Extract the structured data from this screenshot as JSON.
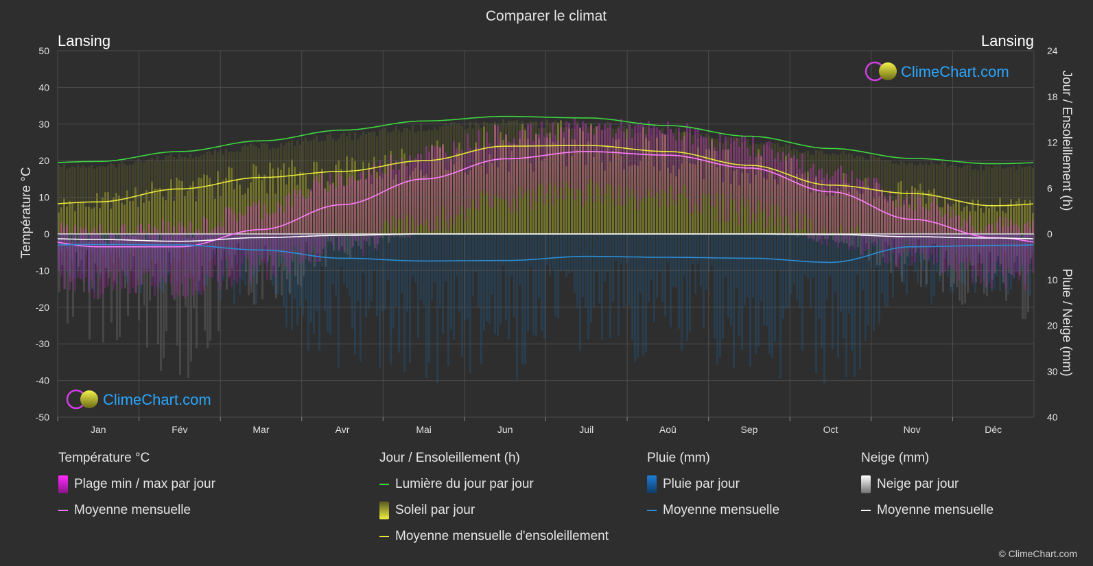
{
  "title": "Comparer le climat",
  "location_left": "Lansing",
  "location_right": "Lansing",
  "left_axis_label": "Température °C",
  "right_axis_label_top": "Jour / Ensoleillement (h)",
  "right_axis_label_bottom": "Pluie / Neige (mm)",
  "logo_text": "ClimeChart.com",
  "copyright": "© ClimeChart.com",
  "colors": {
    "background": "#2e2e2e",
    "daylight": "#3fd83f",
    "sunshine": "#e8e83a",
    "temp_mean": "#ff7dff",
    "temp_range": "#d020d0",
    "rain": "#2a8fd8",
    "snow": "#ffffff",
    "logo": "#2aa6ff"
  },
  "legend": {
    "temperature": {
      "title": "Température °C",
      "range": "Plage min / max par jour",
      "mean": "Moyenne mensuelle"
    },
    "sun": {
      "title": "Jour / Ensoleillement (h)",
      "daylight": "Lumière du jour par jour",
      "sunshine": "Soleil par jour",
      "sunshine_mean": "Moyenne mensuelle d'ensoleillement"
    },
    "rain": {
      "title": "Pluie (mm)",
      "daily": "Pluie par jour",
      "mean": "Moyenne mensuelle"
    },
    "snow": {
      "title": "Neige (mm)",
      "daily": "Neige par jour",
      "mean": "Moyenne mensuelle"
    }
  },
  "chart_data": {
    "type": "line",
    "months": [
      "Jan",
      "Fév",
      "Mar",
      "Avr",
      "Mai",
      "Jun",
      "Juil",
      "Aoû",
      "Sep",
      "Oct",
      "Nov",
      "Déc"
    ],
    "temp_axis": {
      "ticks": [
        50,
        40,
        30,
        20,
        10,
        0,
        -10,
        -20,
        -30,
        -40,
        -50
      ],
      "range": [
        -50,
        50
      ]
    },
    "hours_axis": {
      "ticks": [
        24,
        18,
        12,
        6,
        0
      ],
      "range": [
        0,
        24
      ]
    },
    "precip_axis": {
      "ticks": [
        0,
        10,
        20,
        30,
        40
      ],
      "range": [
        0,
        40
      ],
      "inverted": true
    },
    "series": [
      {
        "name": "Lumière du jour par jour",
        "unit": "h",
        "values": [
          9.5,
          10.8,
          12.2,
          13.6,
          14.8,
          15.4,
          15.2,
          14.2,
          12.8,
          11.2,
          9.9,
          9.2
        ]
      },
      {
        "name": "Moyenne mensuelle d'ensoleillement",
        "unit": "h",
        "values": [
          4.2,
          5.9,
          7.4,
          8.2,
          9.6,
          11.5,
          11.6,
          10.8,
          9.0,
          6.4,
          5.3,
          3.7
        ]
      },
      {
        "name": "Température moyenne mensuelle",
        "unit": "°C",
        "values": [
          -3.5,
          -3.5,
          1.2,
          8.0,
          15.0,
          20.5,
          22.5,
          21.5,
          18.0,
          11.5,
          4.0,
          -1.0
        ]
      },
      {
        "name": "Pluie moyenne mensuelle",
        "unit": "mm",
        "values": [
          2.3,
          2.4,
          3.5,
          5.3,
          5.9,
          5.8,
          4.9,
          5.1,
          5.3,
          6.2,
          2.8,
          2.5
        ]
      },
      {
        "name": "Neige moyenne mensuelle",
        "unit": "mm",
        "values": [
          1.2,
          1.6,
          0.8,
          0.3,
          0.0,
          0.0,
          0.0,
          0.0,
          0.0,
          0.1,
          0.6,
          0.9
        ]
      },
      {
        "name": "Plage min / max par jour — max",
        "unit": "°C",
        "values": [
          0,
          1,
          7,
          15,
          22,
          27,
          29,
          28,
          24,
          17,
          9,
          2
        ]
      },
      {
        "name": "Plage min / max par jour — min",
        "unit": "°C",
        "values": [
          -10,
          -10,
          -5,
          1,
          7,
          13,
          15,
          14,
          10,
          4,
          -2,
          -7
        ]
      }
    ]
  }
}
